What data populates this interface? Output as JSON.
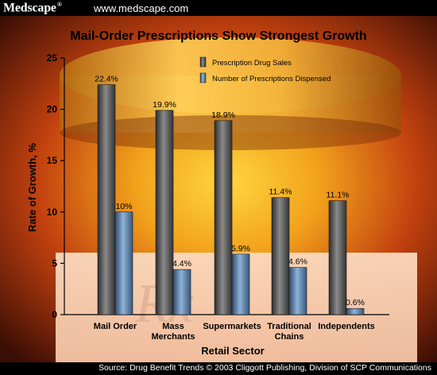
{
  "header": {
    "brand": "Medscape",
    "brand_mark": "®",
    "url": "www.medscape.com"
  },
  "footer": {
    "source": "Source: Drug Benefit Trends © 2003 Cliggott Publishing, Division of SCP Communications"
  },
  "colors": {
    "sales_bar": "#6e6e6e",
    "prescriptions_bar": "#5b7fa6",
    "text": "#000000"
  },
  "chart_data": {
    "type": "bar",
    "title": "Mail-Order Prescriptions Show Strongest Growth",
    "xlabel": "Retail Sector",
    "ylabel": "Rate of Growth, %",
    "ylim": [
      0,
      25
    ],
    "yticks": [
      "0",
      "5",
      "10",
      "15",
      "20",
      "25"
    ],
    "grid": false,
    "legend_position": "top-right",
    "categories": [
      [
        "Mail Order"
      ],
      [
        "Mass",
        "Merchants"
      ],
      [
        "Supermarkets"
      ],
      [
        "Traditional",
        "Chains"
      ],
      [
        "Independents"
      ]
    ],
    "series": [
      {
        "name": "Prescription Drug Sales",
        "values": [
          22.4,
          19.9,
          18.9,
          11.4,
          11.1
        ],
        "labels": [
          "22.4%",
          "19.9%",
          "18.9%",
          "11.4%",
          "11.1%"
        ]
      },
      {
        "name": "Number of Prescriptions Dispensed",
        "values": [
          10,
          4.4,
          5.9,
          4.6,
          0.6
        ],
        "labels": [
          "10%",
          "4.4%",
          "5.9%",
          "4.6%",
          "0.6%"
        ]
      }
    ]
  }
}
